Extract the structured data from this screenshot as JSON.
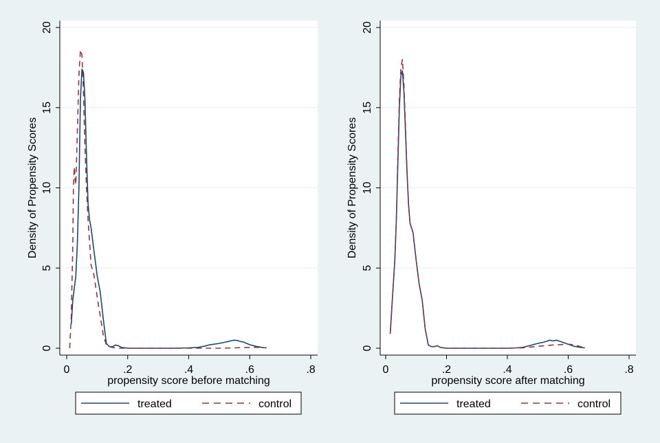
{
  "colors": {
    "background": "#eaf2f3",
    "plot_region": "#ffffff",
    "grid": "#e3eef0",
    "treated": "#1a476f",
    "control": "#90353b"
  },
  "chart_data": [
    {
      "type": "line",
      "xlabel": "propensity score before matching",
      "ylabel": "Density of Propensity Scores",
      "xlim": [
        0,
        0.8
      ],
      "ylim": [
        0,
        20
      ],
      "xticks": [
        0,
        0.2,
        0.4,
        0.6,
        0.8
      ],
      "xtick_labels": [
        "0",
        ".2",
        ".4",
        ".6",
        ".8"
      ],
      "yticks": [
        0,
        5,
        10,
        15,
        20
      ],
      "ytick_labels": [
        "0",
        "5",
        "10",
        "15",
        "20"
      ],
      "grid": "horizontal",
      "legend_position": "bottom",
      "series": [
        {
          "name": "treated",
          "style": "solid",
          "x": [
            0.015,
            0.02,
            0.03,
            0.035,
            0.04,
            0.045,
            0.05,
            0.055,
            0.06,
            0.065,
            0.07,
            0.075,
            0.08,
            0.09,
            0.1,
            0.11,
            0.12,
            0.13,
            0.14,
            0.15,
            0.16,
            0.17,
            0.18,
            0.2,
            0.25,
            0.3,
            0.35,
            0.4,
            0.43,
            0.45,
            0.47,
            0.5,
            0.52,
            0.53,
            0.54,
            0.55,
            0.56,
            0.57,
            0.58,
            0.59,
            0.6,
            0.62,
            0.64,
            0.655
          ],
          "values": [
            1.5,
            3.0,
            4.5,
            6.5,
            10.0,
            15.5,
            17.4,
            17.2,
            15.5,
            12.0,
            9.0,
            8.0,
            7.5,
            6.0,
            4.5,
            3.5,
            1.8,
            0.3,
            0.1,
            0.1,
            0.2,
            0.15,
            0.05,
            0.0,
            0.0,
            0.0,
            0.0,
            0.02,
            0.05,
            0.12,
            0.22,
            0.3,
            0.38,
            0.42,
            0.47,
            0.5,
            0.48,
            0.42,
            0.38,
            0.3,
            0.22,
            0.12,
            0.05,
            0.02
          ]
        },
        {
          "name": "control",
          "style": "dashed",
          "x": [
            0.01,
            0.015,
            0.02,
            0.022,
            0.025,
            0.028,
            0.03,
            0.035,
            0.04,
            0.045,
            0.05,
            0.055,
            0.06,
            0.065,
            0.07,
            0.08,
            0.09,
            0.1,
            0.11,
            0.12,
            0.13,
            0.14,
            0.15,
            0.16,
            0.17,
            0.18,
            0.2,
            0.25,
            0.3,
            0.35,
            0.4,
            0.45,
            0.5,
            0.55,
            0.6,
            0.62,
            0.64,
            0.655
          ],
          "values": [
            0.0,
            2.0,
            6.5,
            10.0,
            11.3,
            10.5,
            10.2,
            13.5,
            17.0,
            18.6,
            18.3,
            16.0,
            12.5,
            10.0,
            8.0,
            5.2,
            4.5,
            3.2,
            2.0,
            0.8,
            0.2,
            0.1,
            0.05,
            0.02,
            0.0,
            0.0,
            0.0,
            0.0,
            0.0,
            0.0,
            0.0,
            0.0,
            0.0,
            0.02,
            0.05,
            0.06,
            0.04,
            0.02
          ]
        }
      ]
    },
    {
      "type": "line",
      "xlabel": "propensity score after matching",
      "ylabel": "Density of Propensity Scores",
      "xlim": [
        0,
        0.8
      ],
      "ylim": [
        0,
        20
      ],
      "xticks": [
        0,
        0.2,
        0.4,
        0.6,
        0.8
      ],
      "xtick_labels": [
        "0",
        ".2",
        ".4",
        ".6",
        ".8"
      ],
      "yticks": [
        0,
        5,
        10,
        15,
        20
      ],
      "ytick_labels": [
        "0",
        "5",
        "10",
        "15",
        "20"
      ],
      "grid": "horizontal",
      "legend_position": "bottom",
      "series": [
        {
          "name": "treated",
          "style": "solid",
          "x": [
            0.015,
            0.02,
            0.025,
            0.03,
            0.035,
            0.04,
            0.045,
            0.05,
            0.055,
            0.06,
            0.065,
            0.07,
            0.075,
            0.08,
            0.09,
            0.1,
            0.11,
            0.12,
            0.13,
            0.14,
            0.15,
            0.16,
            0.17,
            0.18,
            0.2,
            0.25,
            0.3,
            0.35,
            0.4,
            0.43,
            0.45,
            0.47,
            0.5,
            0.52,
            0.54,
            0.55,
            0.56,
            0.57,
            0.58,
            0.6,
            0.62,
            0.64,
            0.655
          ],
          "values": [
            0.9,
            2.5,
            4.0,
            5.5,
            8.0,
            11.5,
            15.0,
            17.0,
            17.3,
            16.0,
            13.5,
            11.0,
            9.0,
            7.8,
            7.2,
            5.5,
            4.0,
            3.0,
            1.2,
            0.2,
            0.1,
            0.1,
            0.15,
            0.05,
            0.0,
            0.0,
            0.0,
            0.0,
            0.0,
            0.02,
            0.05,
            0.15,
            0.3,
            0.38,
            0.5,
            0.45,
            0.5,
            0.45,
            0.38,
            0.25,
            0.12,
            0.05,
            0.02
          ]
        },
        {
          "name": "control",
          "style": "dashed",
          "x": [
            0.015,
            0.02,
            0.025,
            0.03,
            0.035,
            0.04,
            0.045,
            0.05,
            0.055,
            0.06,
            0.065,
            0.07,
            0.075,
            0.08,
            0.09,
            0.1,
            0.11,
            0.12,
            0.13,
            0.14,
            0.15,
            0.16,
            0.17,
            0.18,
            0.2,
            0.25,
            0.3,
            0.35,
            0.4,
            0.45,
            0.5,
            0.55,
            0.6,
            0.62,
            0.64,
            0.655
          ],
          "values": [
            0.9,
            2.5,
            4.0,
            5.5,
            8.0,
            12.0,
            15.5,
            17.5,
            18.0,
            16.5,
            13.8,
            11.0,
            9.0,
            7.8,
            7.2,
            5.5,
            4.0,
            3.0,
            1.2,
            0.2,
            0.1,
            0.1,
            0.15,
            0.05,
            0.0,
            0.0,
            0.0,
            0.0,
            0.0,
            0.02,
            0.12,
            0.2,
            0.25,
            0.22,
            0.1,
            0.03
          ]
        }
      ]
    }
  ]
}
